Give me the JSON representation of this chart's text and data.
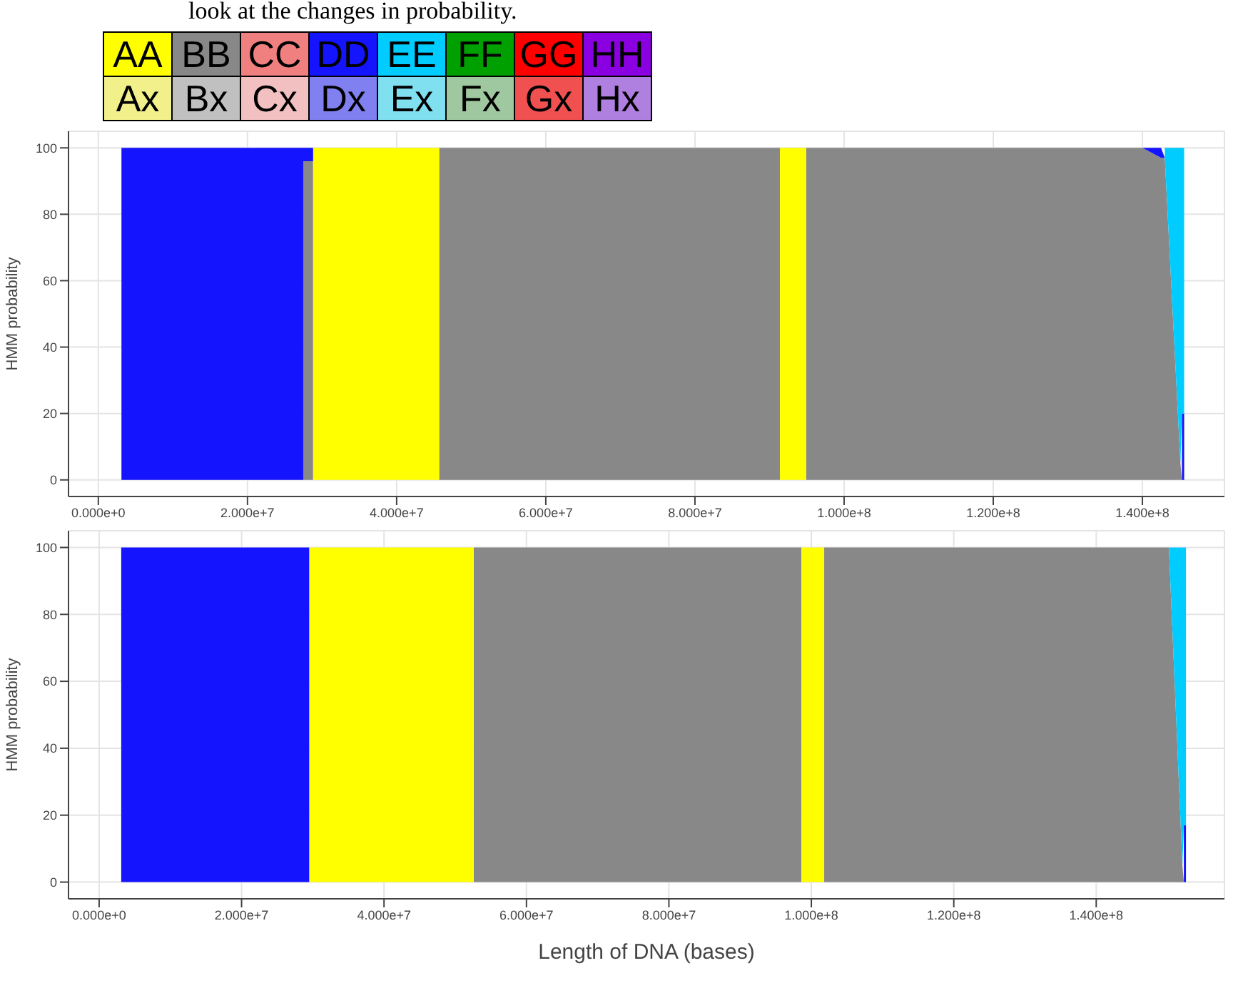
{
  "chart_data": [
    {
      "type": "other",
      "annotations": [
        "look at the changes in probability."
      ],
      "categories": [
        "AA",
        "BB",
        "CC",
        "DD",
        "EE",
        "FF",
        "GG",
        "HH",
        "Ax",
        "Bx",
        "Cx",
        "Dx",
        "Ex",
        "Fx",
        "Gx",
        "Hx"
      ],
      "colors": [
        "#ffff00",
        "#888888",
        "#f08080",
        "#1414ff",
        "#00ccff",
        "#00a000",
        "#ff0000",
        "#8a00e0",
        "#f2f08a",
        "#c0c0c0",
        "#f2c0c0",
        "#8080f0",
        "#80e0f0",
        "#a0c8a0",
        "#f05050",
        "#b080e0"
      ]
    },
    {
      "type": "area",
      "stacked": true,
      "ylabel": "HMM probability",
      "grid": true,
      "x": [
        3100000,
        27500000,
        27500000,
        28800000,
        28800000,
        45700000,
        45700000,
        91400000,
        91400000,
        94900000,
        94900000,
        140000000,
        142500000,
        143000000,
        145100000,
        145300000,
        145600000
      ],
      "xlim": [
        -4000000,
        151000000
      ],
      "xticks": [
        {
          "value": 0,
          "label": "0.000e+0"
        },
        {
          "value": 20000000,
          "label": "2.000e+7"
        },
        {
          "value": 40000000,
          "label": "4.000e+7"
        },
        {
          "value": 60000000,
          "label": "6.000e+7"
        },
        {
          "value": 80000000,
          "label": "8.000e+7"
        },
        {
          "value": 100000000,
          "label": "1.000e+8"
        },
        {
          "value": 120000000,
          "label": "1.200e+8"
        },
        {
          "value": 140000000,
          "label": "1.400e+8"
        }
      ],
      "ylim": [
        -5,
        105
      ],
      "yticks": [
        0,
        20,
        40,
        60,
        80,
        100
      ],
      "series": [
        {
          "color": "#888888",
          "values": [
            null,
            null,
            96,
            96,
            null,
            null,
            100,
            100,
            null,
            null,
            100,
            100,
            97,
            97,
            5,
            0,
            0
          ]
        },
        {
          "color": "#ffff00",
          "values": [
            null,
            null,
            null,
            null,
            100,
            100,
            null,
            null,
            100,
            100,
            null,
            null,
            null,
            null,
            null,
            null,
            null
          ]
        },
        {
          "color": "#1414ff",
          "values": [
            100,
            100,
            4,
            4,
            null,
            null,
            null,
            null,
            null,
            null,
            null,
            0,
            3,
            0,
            null,
            20,
            20
          ]
        },
        {
          "color": "#00ccff",
          "values": [
            null,
            null,
            null,
            null,
            null,
            null,
            null,
            null,
            null,
            null,
            null,
            null,
            null,
            3,
            95,
            80,
            80
          ]
        }
      ]
    },
    {
      "type": "area",
      "stacked": true,
      "ylabel": "HMM probability",
      "xlabel": "Length of DNA (bases)",
      "grid": true,
      "x": [
        3100000,
        29500000,
        29500000,
        52600000,
        52600000,
        98600000,
        98600000,
        101800000,
        101800000,
        150200000,
        152100000,
        152300000,
        152600000
      ],
      "xlim": [
        -4300000,
        158000000
      ],
      "xticks": [
        {
          "value": 0,
          "label": "0.000e+0"
        },
        {
          "value": 20000000,
          "label": "2.000e+7"
        },
        {
          "value": 40000000,
          "label": "4.000e+7"
        },
        {
          "value": 60000000,
          "label": "6.000e+7"
        },
        {
          "value": 80000000,
          "label": "8.000e+7"
        },
        {
          "value": 100000000,
          "label": "1.000e+8"
        },
        {
          "value": 120000000,
          "label": "1.200e+8"
        },
        {
          "value": 140000000,
          "label": "1.400e+8"
        }
      ],
      "ylim": [
        -5,
        105
      ],
      "yticks": [
        0,
        20,
        40,
        60,
        80,
        100
      ],
      "series": [
        {
          "color": "#888888",
          "values": [
            null,
            null,
            null,
            null,
            100,
            100,
            null,
            null,
            100,
            100,
            5,
            0,
            0
          ]
        },
        {
          "color": "#ffff00",
          "values": [
            null,
            null,
            100,
            100,
            null,
            null,
            100,
            100,
            null,
            null,
            null,
            null,
            null
          ]
        },
        {
          "color": "#1414ff",
          "values": [
            100,
            100,
            null,
            null,
            null,
            null,
            null,
            null,
            null,
            null,
            null,
            17,
            17
          ]
        },
        {
          "color": "#00ccff",
          "values": [
            null,
            null,
            null,
            null,
            null,
            null,
            null,
            null,
            null,
            0,
            95,
            83,
            83
          ]
        }
      ]
    }
  ]
}
